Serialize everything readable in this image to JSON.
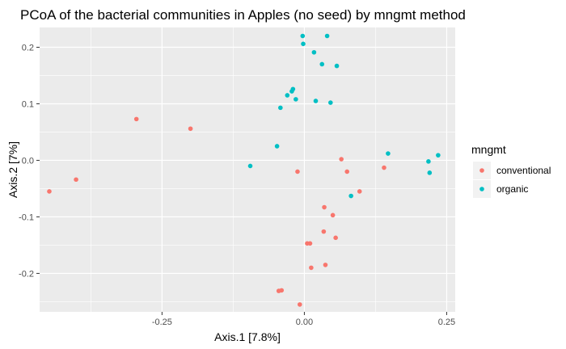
{
  "chart_data": {
    "type": "scatter",
    "title": "PCoA of the bacterial communities in Apples (no seed) by mngmt method",
    "xlabel": "Axis.1   [7.8%]",
    "ylabel": "Axis.2   [7%]",
    "xlim": [
      -0.465,
      0.265
    ],
    "ylim": [
      -0.268,
      0.235
    ],
    "xticks": [
      -0.25,
      0.0,
      0.25
    ],
    "xtick_labels": [
      "-0.25",
      "0.00",
      "0.25"
    ],
    "yticks": [
      -0.2,
      -0.1,
      0.0,
      0.1,
      0.2
    ],
    "ytick_labels": [
      "-0.2",
      "-0.1",
      "0.0",
      "0.1",
      "0.2"
    ],
    "grid": true,
    "background": "#ebebeb",
    "legend": {
      "title": "mngmt",
      "position": "right"
    },
    "series": [
      {
        "name": "conventional",
        "color": "#f8766d",
        "points": [
          [
            -0.448,
            -0.055
          ],
          [
            -0.401,
            -0.034
          ],
          [
            -0.295,
            0.073
          ],
          [
            -0.2,
            0.056
          ],
          [
            -0.012,
            -0.02
          ],
          [
            0.065,
            0.002
          ],
          [
            0.075,
            -0.02
          ],
          [
            0.14,
            -0.013
          ],
          [
            0.097,
            -0.055
          ],
          [
            0.035,
            -0.083
          ],
          [
            0.05,
            -0.097
          ],
          [
            0.034,
            -0.126
          ],
          [
            0.055,
            -0.137
          ],
          [
            0.005,
            -0.147
          ],
          [
            0.01,
            -0.147
          ],
          [
            0.037,
            -0.185
          ],
          [
            0.012,
            -0.19
          ],
          [
            -0.045,
            -0.231
          ],
          [
            -0.04,
            -0.23
          ],
          [
            -0.008,
            -0.255
          ]
        ]
      },
      {
        "name": "organic",
        "color": "#00bfc4",
        "points": [
          [
            -0.003,
            0.22
          ],
          [
            0.04,
            0.22
          ],
          [
            -0.002,
            0.206
          ],
          [
            0.017,
            0.191
          ],
          [
            0.031,
            0.17
          ],
          [
            0.057,
            0.167
          ],
          [
            -0.02,
            0.126
          ],
          [
            -0.03,
            0.115
          ],
          [
            -0.022,
            0.122
          ],
          [
            -0.015,
            0.108
          ],
          [
            0.02,
            0.105
          ],
          [
            0.046,
            0.102
          ],
          [
            -0.042,
            0.093
          ],
          [
            -0.048,
            0.025
          ],
          [
            -0.095,
            -0.01
          ],
          [
            0.147,
            0.012
          ],
          [
            0.235,
            0.009
          ],
          [
            0.218,
            -0.002
          ],
          [
            0.22,
            -0.022
          ],
          [
            0.082,
            -0.063
          ]
        ]
      }
    ]
  }
}
